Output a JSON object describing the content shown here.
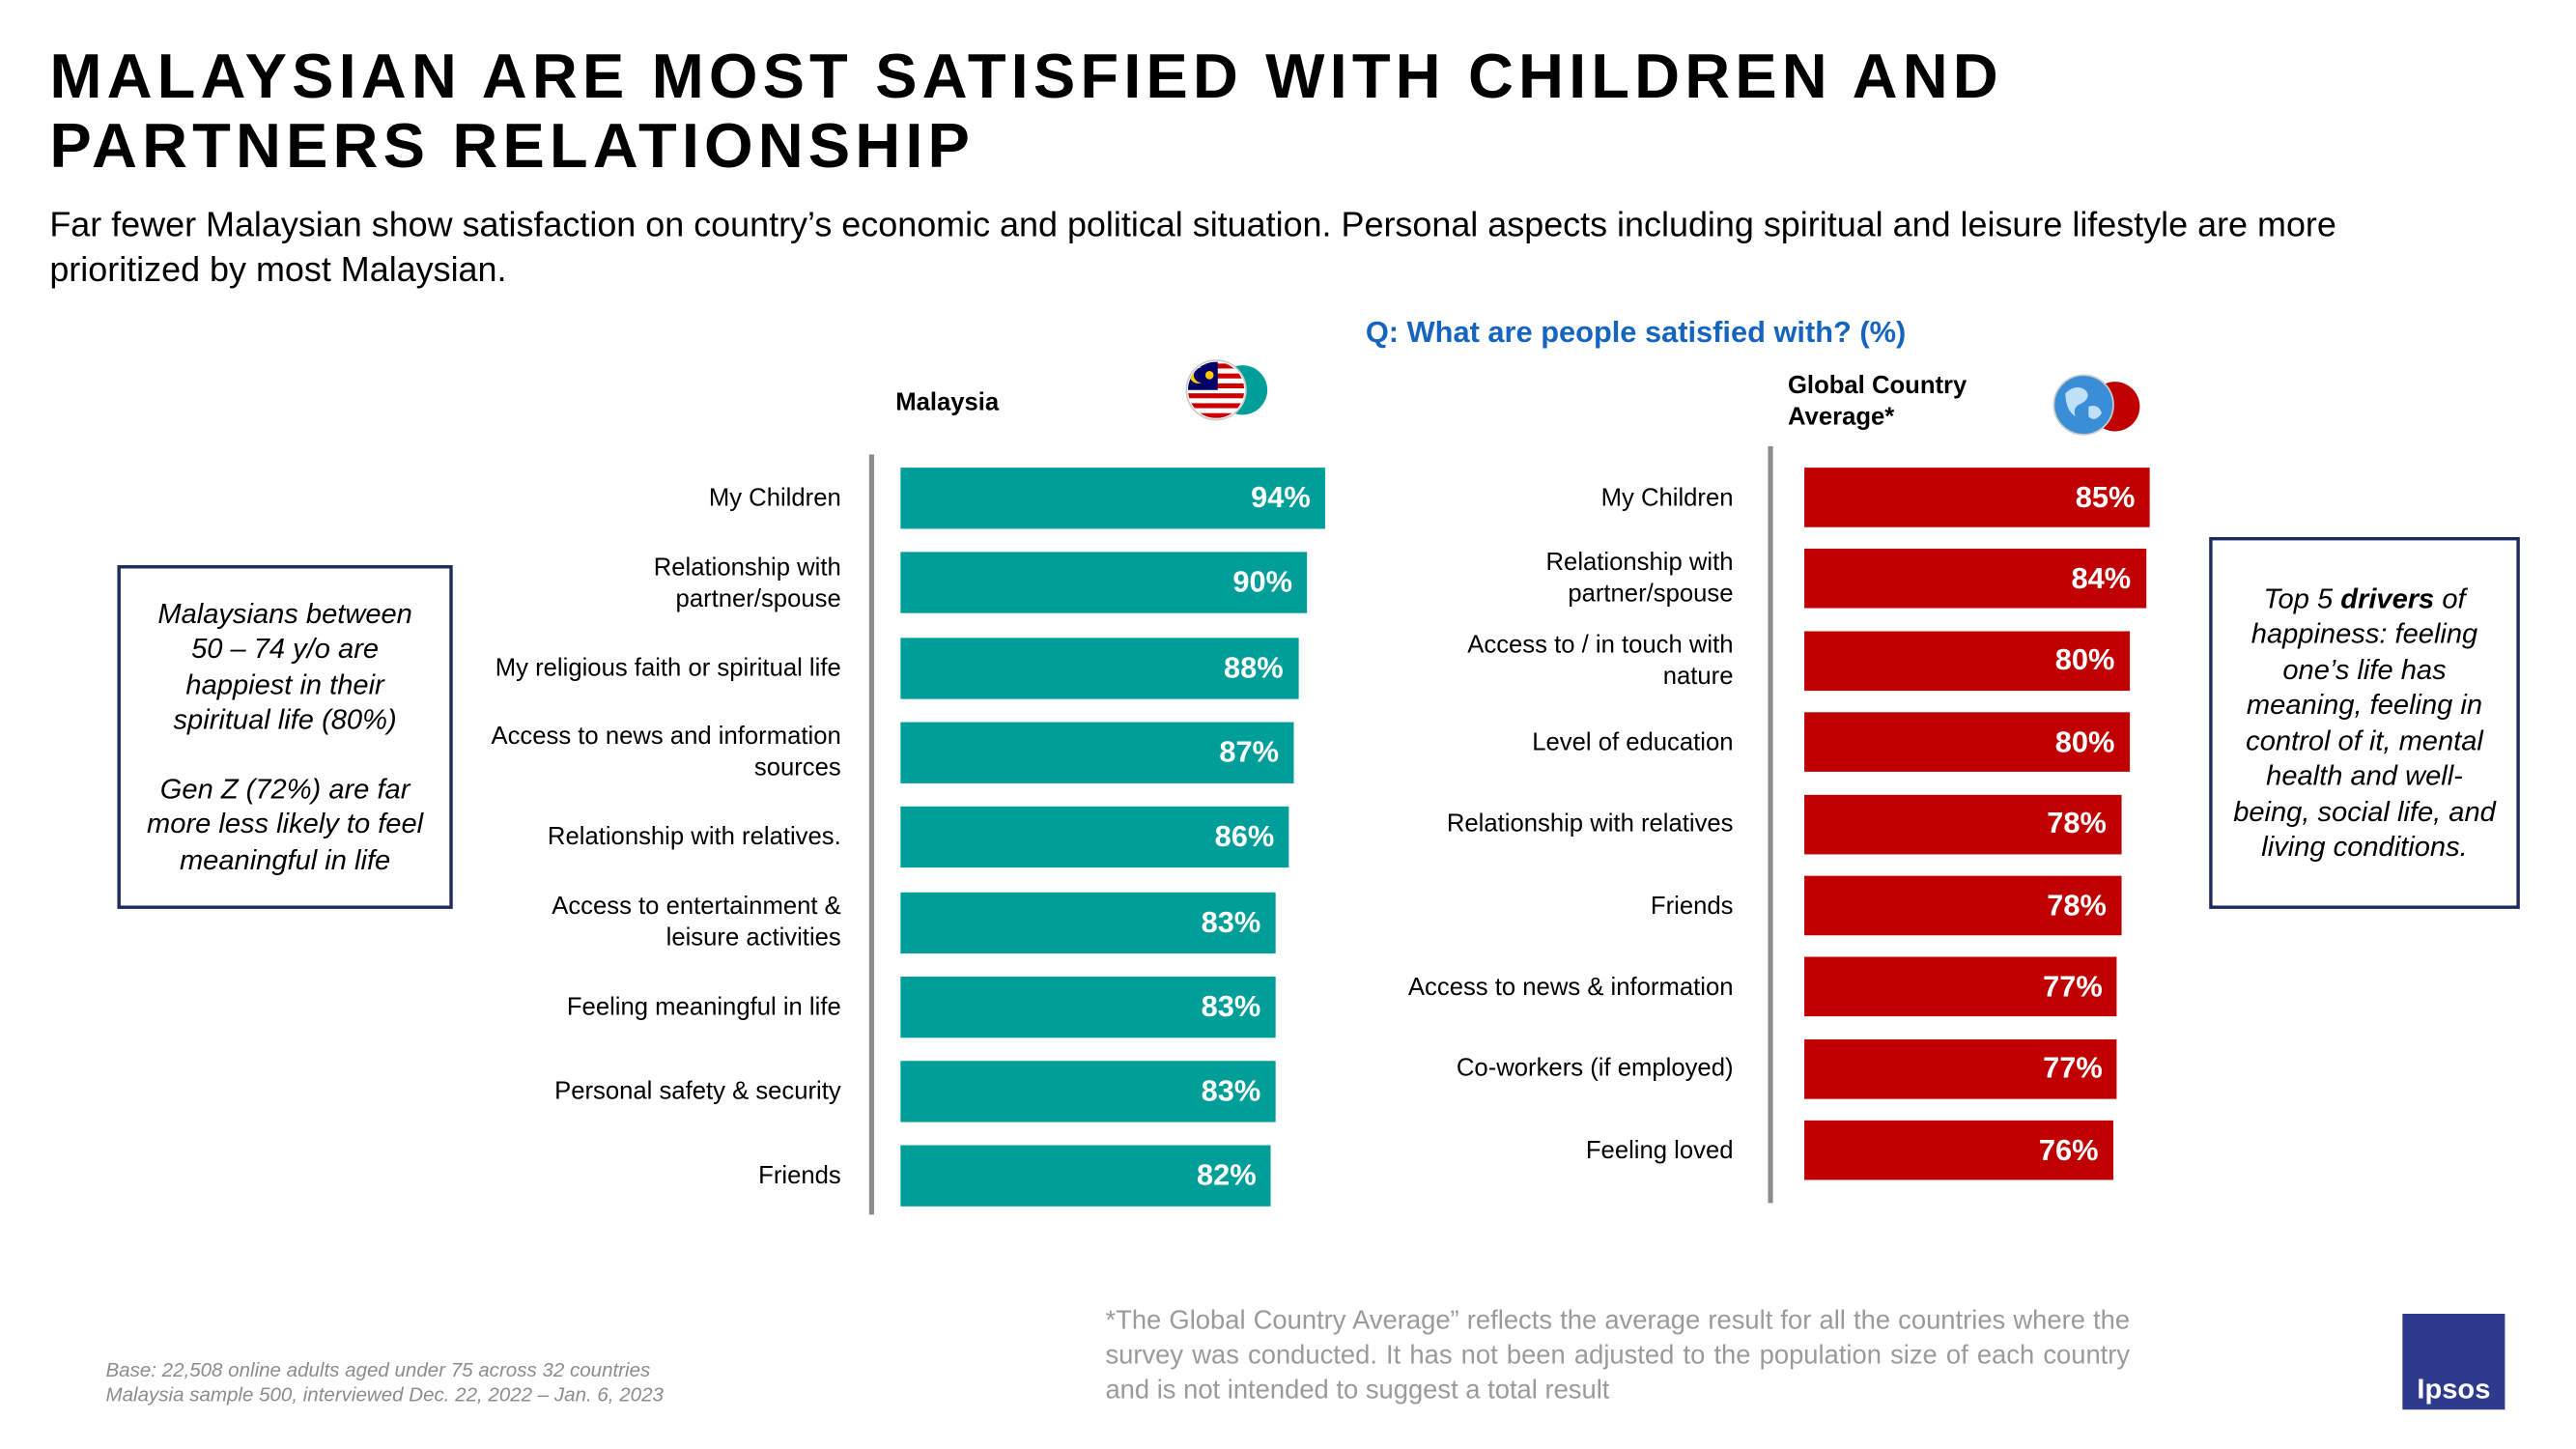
{
  "title": "MALAYSIAN ARE MOST SATISFIED WITH CHILDREN AND PARTNERS RELATIONSHIP",
  "subtitle": "Far fewer Malaysian show satisfaction on country’s economic and political situation. Personal aspects including spiritual and leisure lifestyle are more prioritized by most Malaysian.",
  "question": "Q: What are people satisfied with? (%)",
  "left_note": [
    "Malaysians between 50 – 74 y/o are happiest in their spiritual life (80%)",
    "Gen Z (72%) are far more less likely to feel meaningful in life"
  ],
  "right_note": [
    "Top 5 ",
    "drivers",
    " of happiness: feeling one’s life has meaning, feeling in control of it, mental health and well-being, social life, and living conditions."
  ],
  "base": [
    "Base: 22,508 online adults aged under 75 across 32 countries",
    "Malaysia sample 500, interviewed Dec. 22, 2022 – Jan. 6, 2023"
  ],
  "footnote": "*The Global Country Average” reflects the average result for all the countries where the survey was conducted. It has not been adjusted to the population size of each country and is not intended to suggest a total result",
  "logo": "Ipsos",
  "chart_data": [
    {
      "type": "bar",
      "orientation": "horizontal",
      "title": "Malaysia",
      "color": "#009e99",
      "categories": [
        "My Children",
        "Relationship with partner/spouse",
        "My religious faith or spiritual life",
        "Access to news and information sources",
        "Relationship with relatives.",
        "Access to entertainment & leisure activities",
        "Feeling meaningful in life",
        "Personal safety & security",
        "Friends"
      ],
      "values": [
        94,
        90,
        88,
        87,
        86,
        83,
        83,
        83,
        82
      ],
      "value_labels": [
        "94%",
        "90%",
        "88%",
        "87%",
        "86%",
        "83%",
        "83%",
        "83%",
        "82%"
      ]
    },
    {
      "type": "bar",
      "orientation": "horizontal",
      "title": "Global Country Average*",
      "color": "#c00000",
      "categories": [
        "My Children",
        "Relationship with partner/spouse",
        "Access to / in touch with nature",
        "Level of education",
        "Relationship with relatives",
        "Friends",
        "Access to news & information",
        "Co-workers (if employed)",
        "Feeling loved"
      ],
      "values": [
        85,
        84,
        80,
        80,
        78,
        78,
        77,
        77,
        76
      ],
      "value_labels": [
        "85%",
        "84%",
        "80%",
        "80%",
        "78%",
        "78%",
        "77%",
        "77%",
        "76%"
      ]
    }
  ]
}
